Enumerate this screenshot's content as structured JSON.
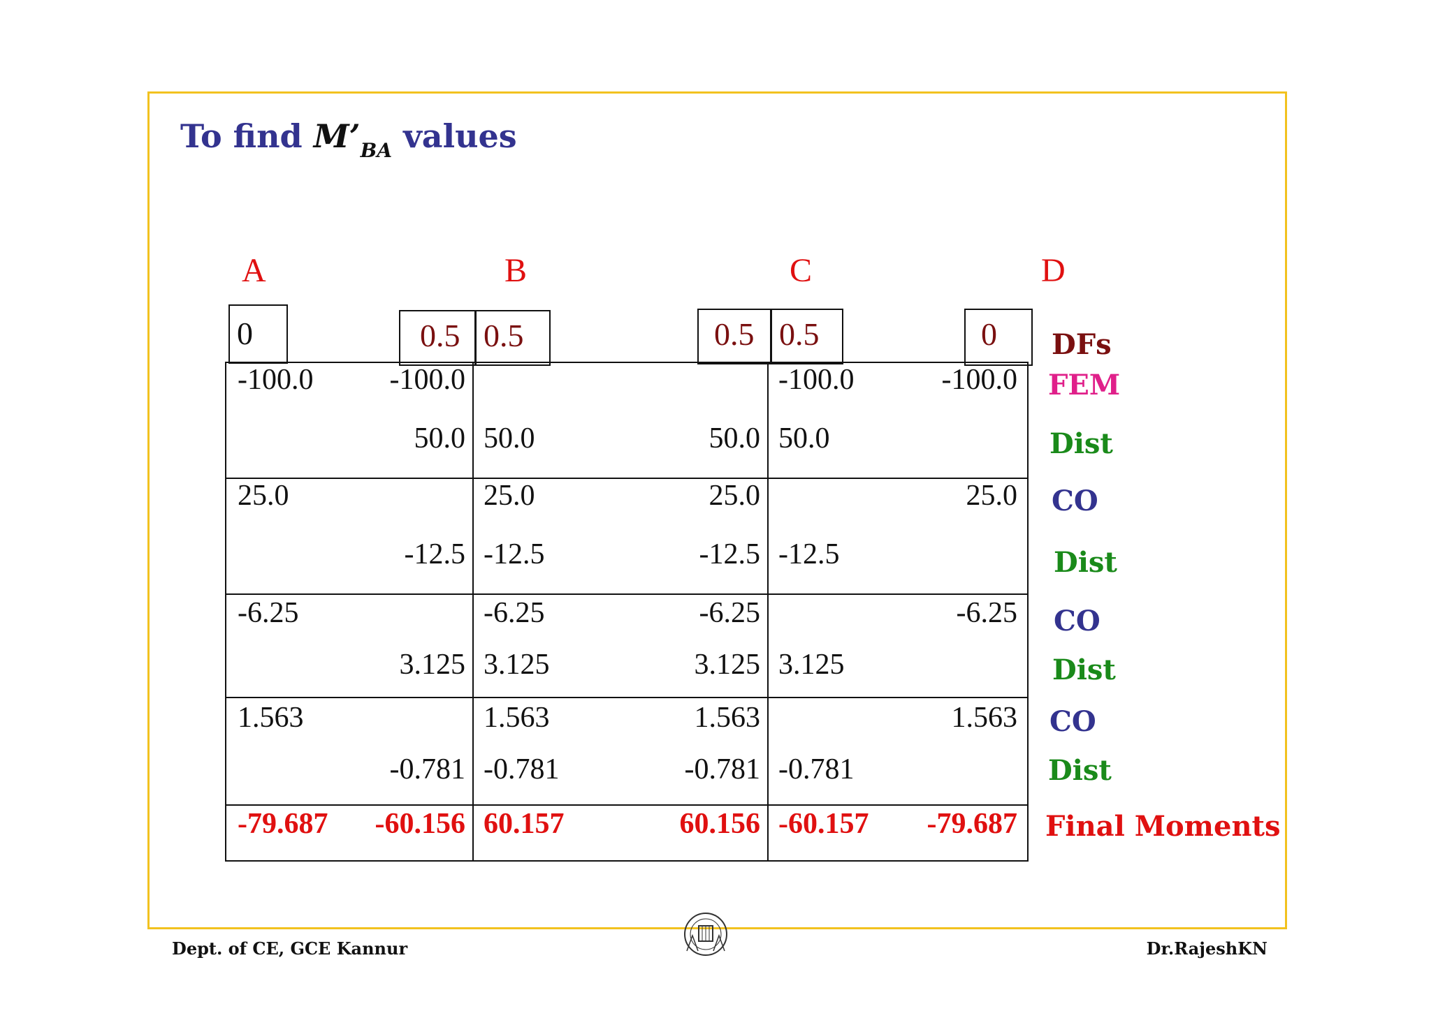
{
  "title": {
    "prefix": "To find",
    "symbol": "M’",
    "subscript": "BA",
    "suffix": "values"
  },
  "joints": [
    "A",
    "B",
    "C",
    "D"
  ],
  "dfs": [
    "0",
    "0.5",
    "0.5",
    "0.5",
    "0.5",
    "0"
  ],
  "rows": [
    {
      "label": "FEM",
      "label_color": "#e0208a",
      "cells": [
        "-100.0",
        "-100.0",
        "",
        "",
        "-100.0",
        "-100.0"
      ]
    },
    {
      "label": "Dist",
      "label_color": "#1a8a1a",
      "cells": [
        "",
        "50.0",
        "50.0",
        "50.0",
        "50.0",
        ""
      ]
    },
    {
      "label": "CO",
      "label_color": "#33338f",
      "cells": [
        "25.0",
        "",
        "25.0",
        "25.0",
        "",
        "25.0"
      ]
    },
    {
      "label": "Dist",
      "label_color": "#1a8a1a",
      "cells": [
        "",
        "-12.5",
        "-12.5",
        "-12.5",
        "-12.5",
        ""
      ]
    },
    {
      "label": "CO",
      "label_color": "#33338f",
      "cells": [
        "-6.25",
        "",
        "-6.25",
        "-6.25",
        "",
        "-6.25"
      ]
    },
    {
      "label": "Dist",
      "label_color": "#1a8a1a",
      "cells": [
        "",
        "3.125",
        "3.125",
        "3.125",
        "3.125",
        ""
      ]
    },
    {
      "label": "CO",
      "label_color": "#33338f",
      "cells": [
        "1.563",
        "",
        "1.563",
        "1.563",
        "",
        "1.563"
      ]
    },
    {
      "label": "Dist",
      "label_color": "#1a8a1a",
      "cells": [
        "",
        "-0.781",
        "-0.781",
        "-0.781",
        "-0.781",
        ""
      ]
    },
    {
      "label": "Final Moments",
      "label_color": "#e01010",
      "cells": [
        "-79.687",
        "-60.156",
        "60.157",
        "60.156",
        "-60.157",
        "-79.687"
      ]
    }
  ],
  "df_label": {
    "text": "DFs",
    "color": "#7a1010"
  },
  "footer": {
    "left": "Dept. of CE, GCE Kannur",
    "right": "Dr.RajeshKN"
  }
}
